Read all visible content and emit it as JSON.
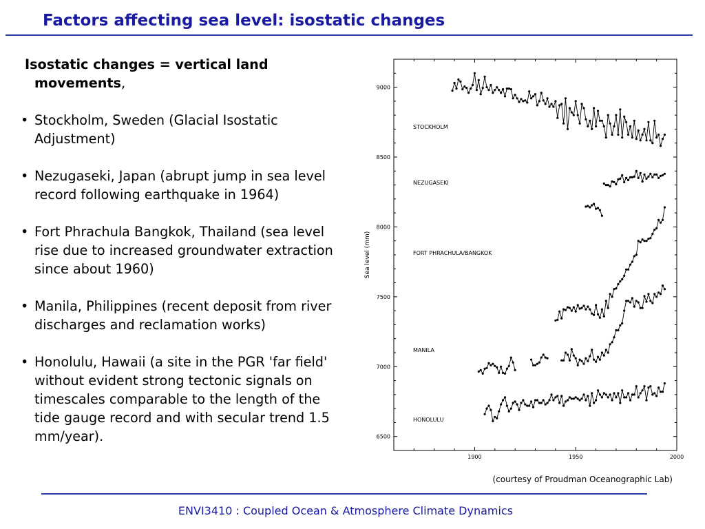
{
  "slide": {
    "title": "Factors affecting sea level: isostatic changes",
    "intro_bold": "Isostatic changes = vertical land movements",
    "intro_suffix": ",",
    "bullets": [
      "Stockholm, Sweden (Glacial Isostatic Adjustment)",
      "Nezugaseki, Japan (abrupt jump in sea level record following earthquake in 1964)",
      "Fort Phrachula Bangkok, Thailand (sea level rise due to increased groundwater extraction since about 1960)",
      "Manila, Philippines (recent deposit from river discharges and reclamation works)",
      "Honolulu, Hawaii (a site in the PGR 'far field' without evident strong tectonic signals on timescales comparable to the length of the tide gauge record and with secular trend 1.5 mm/year)."
    ],
    "credit": "(courtesy of Proudman Oceanographic Lab)",
    "footer": "ENVI3410 : Coupled Ocean & Atmosphere Climate Dynamics"
  },
  "colors": {
    "title": "#1a1aa0",
    "rule": "#2a3aa8",
    "series": "#000000"
  },
  "chart_data": {
    "type": "line",
    "xlabel": "",
    "ylabel": "Sea level (mm)",
    "xlim": [
      1860,
      2000
    ],
    "ylim": [
      6400,
      9200
    ],
    "xticks": [
      1900,
      1950,
      2000
    ],
    "yticks": [
      6500,
      7000,
      7500,
      8000,
      8500,
      9000
    ],
    "grid": false,
    "markers": true,
    "series": [
      {
        "name": "STOCKHOLM",
        "x": [
          1889,
          1890,
          1891,
          1892,
          1893,
          1894,
          1895,
          1896,
          1897,
          1898,
          1899,
          1900,
          1901,
          1902,
          1903,
          1904,
          1905,
          1906,
          1907,
          1908,
          1909,
          1910,
          1911,
          1912,
          1913,
          1914,
          1915,
          1916,
          1917,
          1918,
          1919,
          1920,
          1921,
          1922,
          1923,
          1924,
          1925,
          1926,
          1927,
          1928,
          1929,
          1930,
          1931,
          1932,
          1933,
          1934,
          1935,
          1936,
          1937,
          1938,
          1939,
          1940,
          1941,
          1942,
          1943,
          1944,
          1945,
          1946,
          1947,
          1948,
          1949,
          1950,
          1951,
          1952,
          1953,
          1954,
          1955,
          1956,
          1957,
          1958,
          1959,
          1960,
          1961,
          1962,
          1963,
          1964,
          1965,
          1966,
          1967,
          1968,
          1969,
          1970,
          1971,
          1972,
          1973,
          1974,
          1975,
          1976,
          1977,
          1978,
          1979,
          1980,
          1981,
          1982,
          1983,
          1984,
          1985,
          1986,
          1987,
          1988,
          1989,
          1990,
          1991,
          1992,
          1993,
          1994
        ],
        "values": [
          8975,
          9030,
          8990,
          9055,
          9040,
          8985,
          9005,
          8995,
          8960,
          8990,
          9015,
          9100,
          8980,
          9050,
          8950,
          8995,
          9075,
          9000,
          8980,
          9015,
          8960,
          8980,
          9000,
          8980,
          8960,
          8985,
          8935,
          8990,
          8990,
          8985,
          8920,
          8945,
          8920,
          8895,
          8915,
          8900,
          8905,
          8890,
          8970,
          8920,
          8935,
          8950,
          8870,
          8900,
          8960,
          8905,
          8880,
          8920,
          8860,
          8880,
          8860,
          8900,
          8780,
          8870,
          8880,
          8740,
          8920,
          8700,
          8850,
          8820,
          8800,
          8900,
          8800,
          8740,
          8880,
          8850,
          8770,
          8720,
          8760,
          8700,
          8850,
          8720,
          8830,
          8760,
          8760,
          8720,
          8640,
          8800,
          8740,
          8660,
          8720,
          8800,
          8660,
          8840,
          8640,
          8790,
          8750,
          8660,
          8720,
          8640,
          8760,
          8630,
          8690,
          8620,
          8660,
          8700,
          8620,
          8750,
          8620,
          8600,
          8760,
          8640,
          8660,
          8580,
          8630,
          8660
        ]
      },
      {
        "name": "NEZUGASEKI",
        "segments": [
          {
            "x": [
              1955,
              1956,
              1957,
              1958,
              1959,
              1960,
              1961,
              1962,
              1963
            ],
            "values": [
              8145,
              8150,
              8140,
              8155,
              8165,
              8130,
              8135,
              8120,
              8080
            ]
          },
          {
            "x": [
              1964,
              1965,
              1966,
              1967,
              1968,
              1969,
              1970,
              1971,
              1972,
              1973,
              1974,
              1975,
              1976,
              1977,
              1978,
              1979,
              1980,
              1981,
              1982,
              1983,
              1984,
              1985,
              1986,
              1987,
              1988,
              1989,
              1990,
              1991,
              1992,
              1993,
              1994
            ],
            "values": [
              8310,
              8300,
              8300,
              8290,
              8325,
              8320,
              8305,
              8340,
              8345,
              8370,
              8320,
              8350,
              8335,
              8355,
              8355,
              8360,
              8400,
              8350,
              8385,
              8325,
              8375,
              8345,
              8360,
              8380,
              8355,
              8375,
              8375,
              8350,
              8365,
              8370,
              8380
            ]
          }
        ]
      },
      {
        "name": "FORT PHRACHULA/BANGKOK",
        "x": [
          1940,
          1941,
          1942,
          1943,
          1944,
          1945,
          1946,
          1947,
          1948,
          1949,
          1950,
          1951,
          1952,
          1953,
          1954,
          1955,
          1956,
          1957,
          1958,
          1959,
          1960,
          1961,
          1962,
          1963,
          1964,
          1965,
          1966,
          1967,
          1968,
          1969,
          1970,
          1971,
          1972,
          1973,
          1974,
          1975,
          1976,
          1977,
          1978,
          1979,
          1980,
          1981,
          1982,
          1983,
          1984,
          1985,
          1986,
          1987,
          1988,
          1989,
          1990,
          1991,
          1992,
          1993,
          1994
        ],
        "values": [
          7330,
          7335,
          7395,
          7345,
          7410,
          7405,
          7425,
          7420,
          7400,
          7425,
          7395,
          7440,
          7415,
          7420,
          7435,
          7410,
          7430,
          7410,
          7380,
          7370,
          7440,
          7375,
          7350,
          7410,
          7360,
          7470,
          7420,
          7520,
          7500,
          7555,
          7560,
          7590,
          7610,
          7625,
          7650,
          7695,
          7695,
          7730,
          7750,
          7790,
          7800,
          7900,
          7890,
          7910,
          7900,
          7900,
          7915,
          7920,
          7950,
          7980,
          7990,
          8050,
          8030,
          8050,
          8140
        ]
      },
      {
        "name": "MANILA",
        "segments": [
          {
            "x": [
              1902,
              1903,
              1904,
              1905,
              1906,
              1907,
              1908,
              1909,
              1910,
              1911,
              1912,
              1913,
              1914,
              1915,
              1916,
              1917,
              1918,
              1919,
              1920
            ],
            "values": [
              6965,
              6975,
              6950,
              6985,
              6990,
              7025,
              7010,
              7020,
              7005,
              6995,
              6955,
              7000,
              6955,
              6950,
              6985,
              7005,
              7065,
              7030,
              6975
            ]
          },
          {
            "x": [
              1928,
              1929,
              1930,
              1931,
              1932,
              1933,
              1934,
              1935,
              1936
            ],
            "values": [
              7050,
              7010,
              7010,
              7020,
              7030,
              7065,
              7085,
              7065,
              7060
            ]
          },
          {
            "x": [
              1943,
              1944,
              1945,
              1946,
              1947,
              1948,
              1949,
              1950,
              1951,
              1952,
              1953,
              1954,
              1955,
              1956,
              1957,
              1958,
              1959,
              1960,
              1961,
              1962,
              1963,
              1964,
              1965,
              1966,
              1967,
              1968,
              1969,
              1970,
              1971,
              1972,
              1973,
              1974,
              1975,
              1976,
              1977,
              1978,
              1979,
              1980,
              1981,
              1982,
              1983,
              1984,
              1985,
              1986,
              1987,
              1988,
              1989,
              1990,
              1991,
              1992,
              1993,
              1994
            ],
            "values": [
              7045,
              7045,
              7100,
              7085,
              7045,
              7125,
              7080,
              7060,
              7010,
              7050,
              7040,
              7020,
              7060,
              7040,
              7075,
              7120,
              7050,
              7035,
              7070,
              7050,
              7100,
              7080,
              7120,
              7100,
              7160,
              7175,
              7210,
              7260,
              7260,
              7295,
              7310,
              7400,
              7470,
              7470,
              7460,
              7490,
              7430,
              7470,
              7460,
              7420,
              7420,
              7505,
              7465,
              7520,
              7470,
              7455,
              7520,
              7500,
              7530,
              7520,
              7580,
              7555
            ]
          }
        ]
      },
      {
        "name": "HONOLULU",
        "x": [
          1905,
          1906,
          1907,
          1908,
          1909,
          1910,
          1911,
          1912,
          1913,
          1914,
          1915,
          1916,
          1917,
          1918,
          1919,
          1920,
          1921,
          1922,
          1923,
          1924,
          1925,
          1926,
          1927,
          1928,
          1929,
          1930,
          1931,
          1932,
          1933,
          1934,
          1935,
          1936,
          1937,
          1938,
          1939,
          1940,
          1941,
          1942,
          1943,
          1944,
          1945,
          1946,
          1947,
          1948,
          1949,
          1950,
          1951,
          1952,
          1953,
          1954,
          1955,
          1956,
          1957,
          1958,
          1959,
          1960,
          1961,
          1962,
          1963,
          1964,
          1965,
          1966,
          1967,
          1968,
          1969,
          1970,
          1971,
          1972,
          1973,
          1974,
          1975,
          1976,
          1977,
          1978,
          1979,
          1980,
          1981,
          1982,
          1983,
          1984,
          1985,
          1986,
          1987,
          1988,
          1989,
          1990,
          1991,
          1992,
          1993,
          1994
        ],
        "values": [
          6660,
          6700,
          6720,
          6690,
          6610,
          6640,
          6630,
          6680,
          6730,
          6760,
          6780,
          6720,
          6680,
          6700,
          6740,
          6750,
          6730,
          6690,
          6740,
          6760,
          6730,
          6720,
          6720,
          6750,
          6710,
          6760,
          6760,
          6740,
          6740,
          6760,
          6730,
          6740,
          6760,
          6800,
          6760,
          6780,
          6790,
          6740,
          6790,
          6720,
          6750,
          6760,
          6780,
          6770,
          6770,
          6780,
          6770,
          6760,
          6770,
          6800,
          6760,
          6790,
          6720,
          6810,
          6740,
          6760,
          6830,
          6800,
          6780,
          6810,
          6800,
          6780,
          6800,
          6760,
          6810,
          6780,
          6810,
          6740,
          6830,
          6780,
          6780,
          6810,
          6760,
          6800,
          6800,
          6860,
          6780,
          6810,
          6830,
          6860,
          6760,
          6850,
          6860,
          6800,
          6810,
          6790,
          6850,
          6820,
          6820,
          6880
        ]
      }
    ]
  }
}
